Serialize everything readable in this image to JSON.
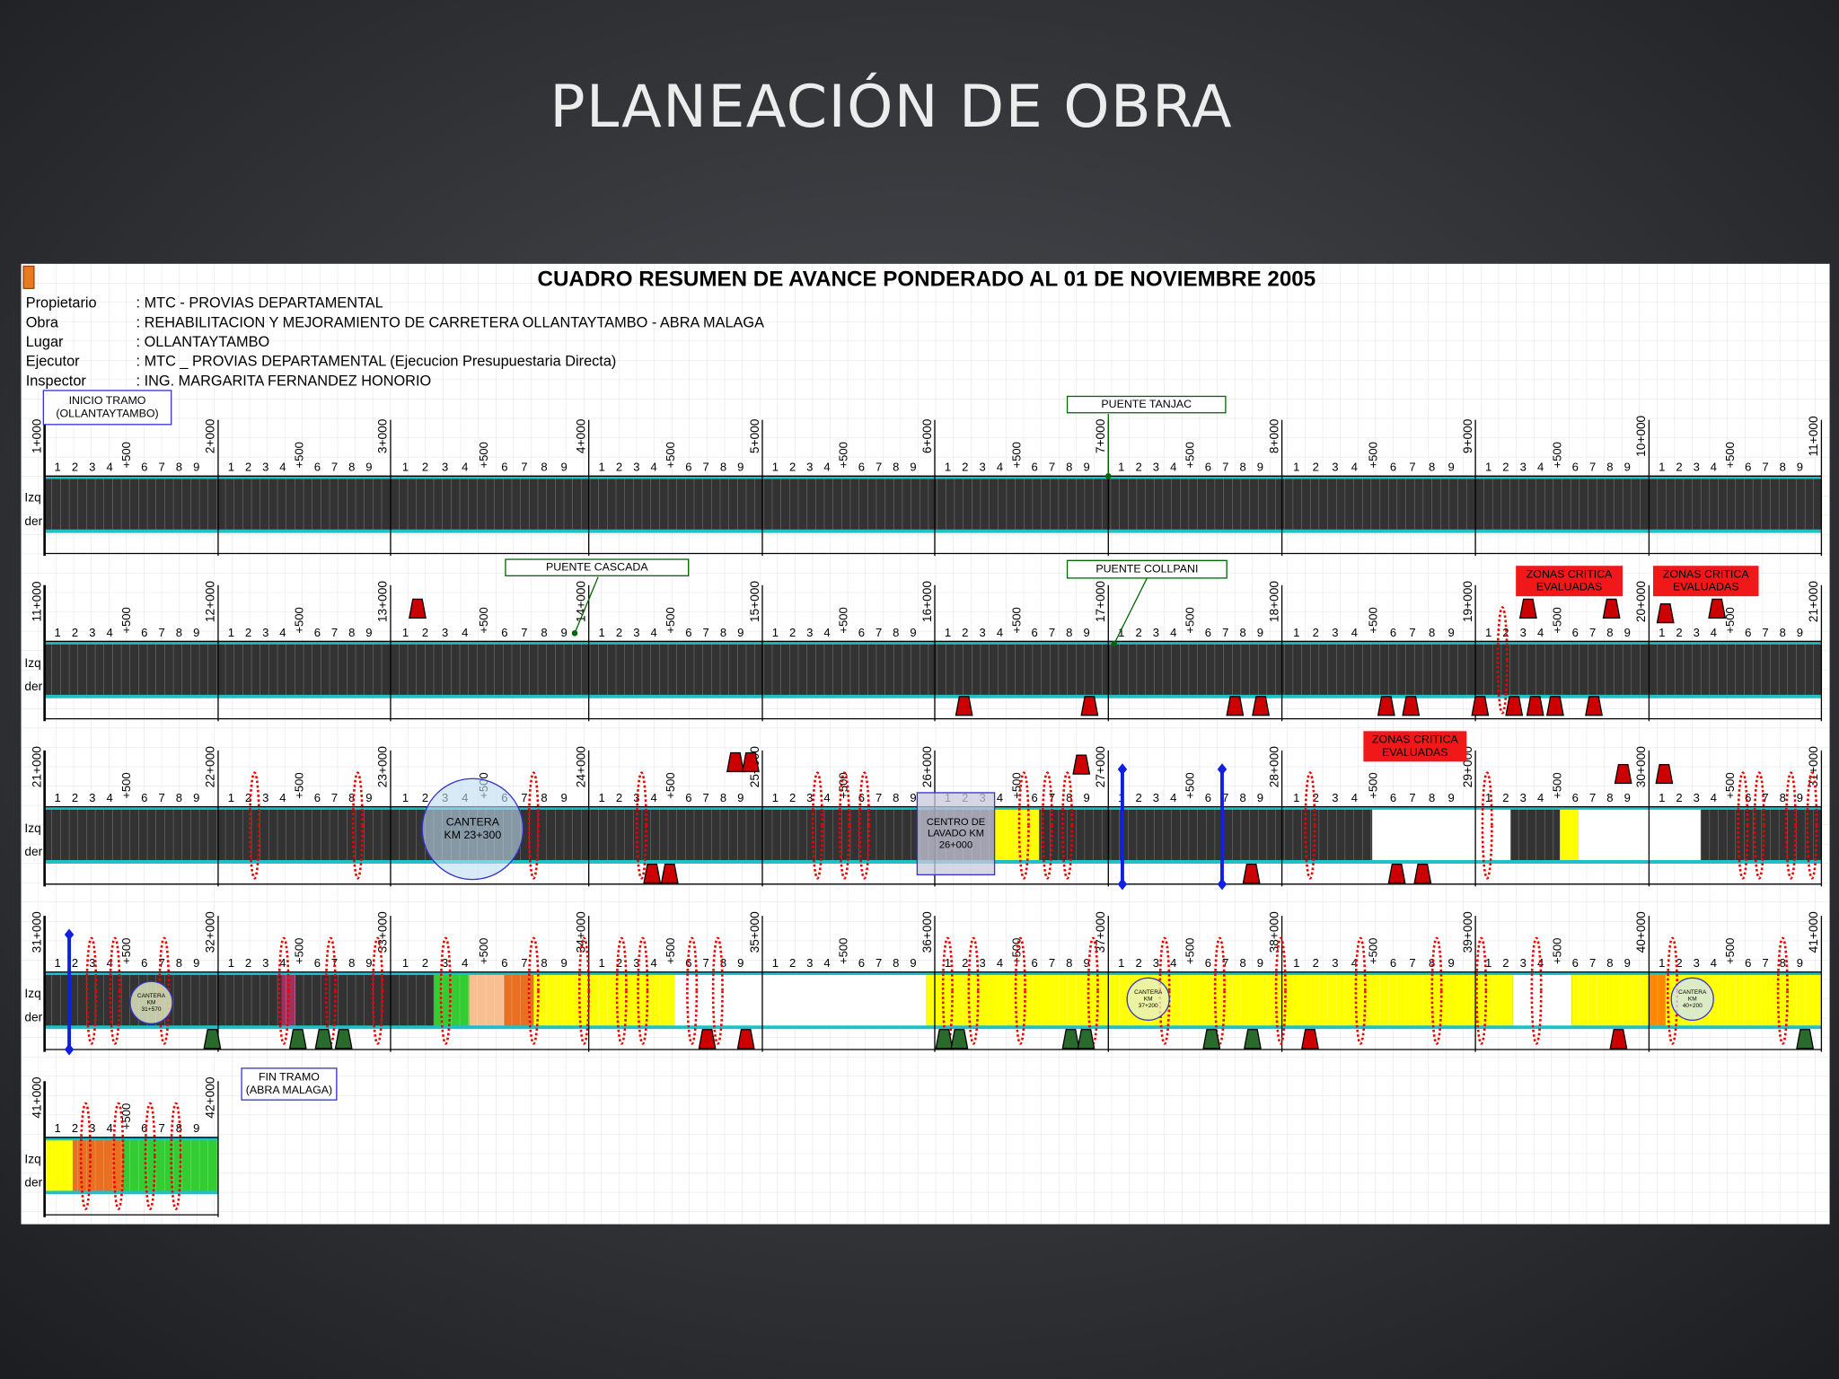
{
  "slide_title": "PLANEACIÓN DE OBRA",
  "sheet": {
    "title": "CUADRO RESUMEN DE AVANCE PONDERADO AL 01 DE NOVIEMBRE 2005",
    "info": [
      [
        "Propietario",
        ": MTC - PROVIAS DEPARTAMENTAL"
      ],
      [
        "Obra",
        ": REHABILITACION Y MEJORAMIENTO DE CARRETERA OLLANTAYTAMBO - ABRA MALAGA"
      ],
      [
        "Lugar",
        ": OLLANTAYTAMBO"
      ],
      [
        "Ejecutor",
        ": MTC _ PROVIAS DEPARTAMENTAL (Ejecucion Presupuestaria Directa)"
      ],
      [
        "Inspector",
        ": ING. MARGARITA FERNANDEZ HONORIO"
      ]
    ],
    "side_labels": [
      "Izq",
      "der"
    ],
    "sub_ticks": [
      "1",
      "2",
      "3",
      "4",
      "+500",
      "6",
      "7",
      "8",
      "9"
    ],
    "km_markers": [
      "1+000",
      "2+000",
      "3+000",
      "4+000",
      "5+000",
      "6+000",
      "7+000",
      "8+000",
      "9+000",
      "10+000",
      "11+000",
      "12+000",
      "13+000",
      "14+000",
      "15+000",
      "16+000",
      "17+000",
      "18+000",
      "19+000",
      "20+000",
      "21+000",
      "22+000",
      "23+000",
      "24+000",
      "25+000",
      "26+000",
      "27+000",
      "28+000",
      "29+000",
      "30+000",
      "31+000",
      "32+000",
      "33+000",
      "34+000",
      "35+000",
      "36+000",
      "37+000",
      "38+000",
      "39+000",
      "40+000",
      "41+000",
      "42+000"
    ],
    "annotations": [
      {
        "lines": [
          "INICIO TRAMO",
          "(OLLANTAYTAMBO)"
        ]
      },
      {
        "lines": [
          "PUENTE TANJAC"
        ]
      },
      {
        "lines": [
          "PUENTE CASCADA"
        ]
      },
      {
        "lines": [
          "PUENTE COLLPANI"
        ]
      },
      {
        "lines": [
          "ZONAS CRITICA",
          "EVALUADAS"
        ]
      },
      {
        "lines": [
          "ZONAS CRITICA",
          "EVALUADAS"
        ]
      },
      {
        "lines": [
          "ZONAS CRITICA",
          "EVALUADAS"
        ]
      },
      {
        "lines": [
          "CANTERA",
          "KM 23+300"
        ]
      },
      {
        "lines": [
          "CENTRO DE",
          "LAVADO KM",
          "26+000"
        ]
      },
      {
        "lines": [
          "CANTERA",
          "KM",
          "31+570"
        ]
      },
      {
        "lines": [
          "CANTERA",
          "KM",
          "37+200"
        ]
      },
      {
        "lines": [
          "CANTERA",
          "KM",
          "40+200"
        ]
      },
      {
        "lines": [
          "FIN TRAMO",
          "(ABRA MALAGA)"
        ]
      }
    ]
  }
}
